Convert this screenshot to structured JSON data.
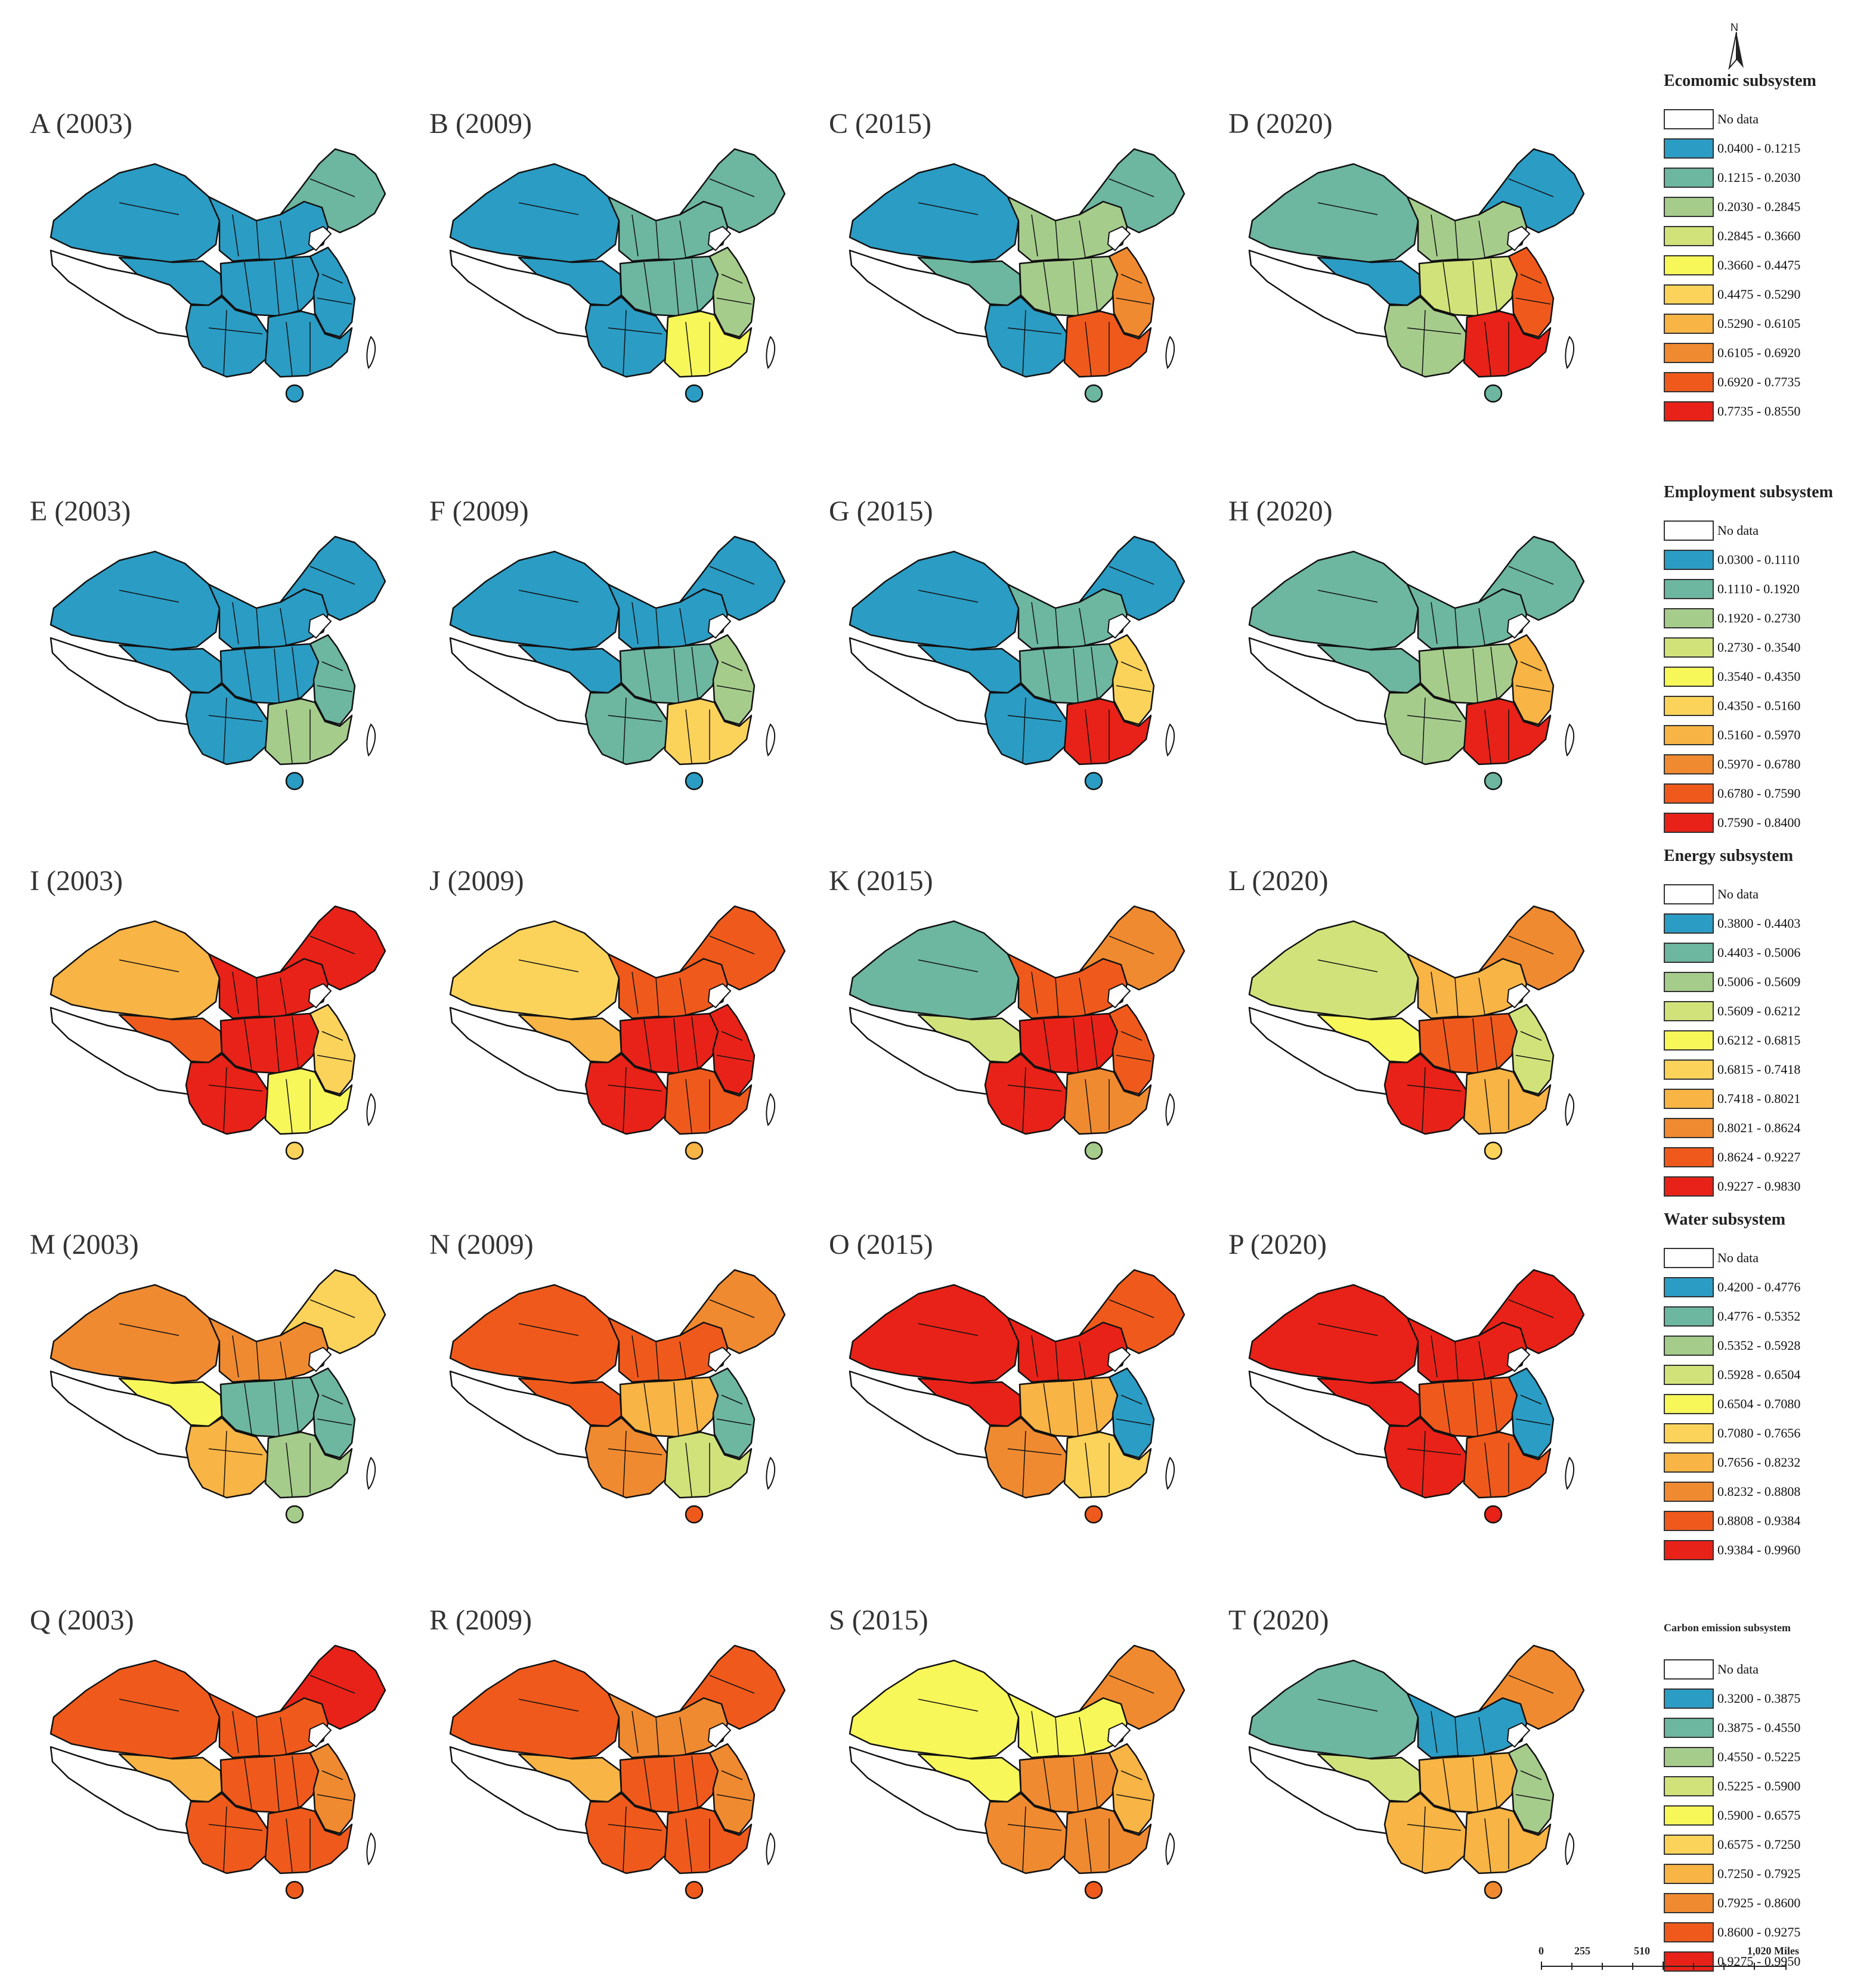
{
  "figure": {
    "north_label": "N",
    "scale": {
      "tick_0": "0",
      "tick_1": "255",
      "tick_2": "510",
      "tick_3": "1,020 Miles"
    }
  },
  "legends": [
    {
      "title": "Ecomomic subsystem",
      "items": [
        "No data",
        "0.0400 - 0.1215",
        "0.1215 - 0.2030",
        "0.2030 - 0.2845",
        "0.2845 - 0.3660",
        "0.3660 - 0.4475",
        "0.4475 - 0.5290",
        "0.5290 - 0.6105",
        "0.6105 - 0.6920",
        "0.6920 - 0.7735",
        "0.7735 - 0.8550"
      ]
    },
    {
      "title": "Employment subsystem",
      "items": [
        "No data",
        "0.0300 - 0.1110",
        "0.1110 - 0.1920",
        "0.1920 - 0.2730",
        "0.2730 - 0.3540",
        "0.3540 - 0.4350",
        "0.4350 - 0.5160",
        "0.5160 - 0.5970",
        "0.5970 - 0.6780",
        "0.6780 - 0.7590",
        "0.7590 - 0.8400"
      ]
    },
    {
      "title": "Energy subsystem",
      "items": [
        "No data",
        "0.3800 - 0.4403",
        "0.4403 - 0.5006",
        "0.5006 - 0.5609",
        "0.5609 - 0.6212",
        "0.6212 - 0.6815",
        "0.6815 - 0.7418",
        "0.7418 - 0.8021",
        "0.8021 - 0.8624",
        "0.8624 - 0.9227",
        "0.9227 - 0.9830"
      ]
    },
    {
      "title": "Water subsystem",
      "items": [
        "No data",
        "0.4200 - 0.4776",
        "0.4776 - 0.5352",
        "0.5352 - 0.5928",
        "0.5928 - 0.6504",
        "0.6504 - 0.7080",
        "0.7080 - 0.7656",
        "0.7656 - 0.8232",
        "0.8232 - 0.8808",
        "0.8808 - 0.9384",
        "0.9384 - 0.9960"
      ]
    },
    {
      "title": "Carbon emission subsystem",
      "items": [
        "No data",
        "0.3200 - 0.3875",
        "0.3875 - 0.4550",
        "0.4550 - 0.5225",
        "0.5225 - 0.5900",
        "0.5900 - 0.6575",
        "0.6575 - 0.7250",
        "0.7250 - 0.7925",
        "0.7925 - 0.8600",
        "0.8600 - 0.9275",
        "0.9275 - 0.9950"
      ]
    }
  ],
  "palette": [
    "#ffffff",
    "#2b9cc4",
    "#6db6a0",
    "#a6cc8c",
    "#d2e27a",
    "#f7f75a",
    "#fcd35a",
    "#f8b444",
    "#f08a30",
    "#ef5a1c",
    "#e82218"
  ],
  "panels": [
    {
      "label": "A (2003)",
      "class_levels": {
        "nw": 1,
        "tibet": 0,
        "qinghai": 1,
        "north": 1,
        "ne": 2,
        "central": 1,
        "east": 1,
        "south": 1,
        "sw": 1,
        "hainan": 1
      }
    },
    {
      "label": "B (2009)",
      "class_levels": {
        "nw": 1,
        "tibet": 0,
        "qinghai": 1,
        "north": 2,
        "ne": 2,
        "central": 2,
        "east": 3,
        "south": 5,
        "sw": 1,
        "hainan": 1
      }
    },
    {
      "label": "C (2015)",
      "class_levels": {
        "nw": 1,
        "tibet": 0,
        "qinghai": 2,
        "north": 3,
        "ne": 2,
        "central": 3,
        "east": 8,
        "south": 9,
        "sw": 1,
        "hainan": 2
      }
    },
    {
      "label": "D (2020)",
      "class_levels": {
        "nw": 2,
        "tibet": 0,
        "qinghai": 1,
        "north": 3,
        "ne": 1,
        "central": 4,
        "east": 9,
        "south": 10,
        "sw": 3,
        "hainan": 2
      }
    },
    {
      "label": "E (2003)",
      "class_levels": {
        "nw": 1,
        "tibet": 0,
        "qinghai": 1,
        "north": 1,
        "ne": 1,
        "central": 1,
        "east": 2,
        "south": 3,
        "sw": 1,
        "hainan": 1
      }
    },
    {
      "label": "F (2009)",
      "class_levels": {
        "nw": 1,
        "tibet": 0,
        "qinghai": 1,
        "north": 1,
        "ne": 1,
        "central": 2,
        "east": 3,
        "south": 6,
        "sw": 2,
        "hainan": 1
      }
    },
    {
      "label": "G (2015)",
      "class_levels": {
        "nw": 1,
        "tibet": 0,
        "qinghai": 1,
        "north": 2,
        "ne": 1,
        "central": 2,
        "east": 6,
        "south": 10,
        "sw": 1,
        "hainan": 1
      }
    },
    {
      "label": "H (2020)",
      "class_levels": {
        "nw": 2,
        "tibet": 0,
        "qinghai": 2,
        "north": 2,
        "ne": 2,
        "central": 3,
        "east": 7,
        "south": 10,
        "sw": 3,
        "hainan": 2
      }
    },
    {
      "label": "I (2003)",
      "class_levels": {
        "nw": 7,
        "tibet": 0,
        "qinghai": 9,
        "north": 10,
        "ne": 10,
        "central": 10,
        "east": 6,
        "south": 5,
        "sw": 10,
        "hainan": 6
      }
    },
    {
      "label": "J (2009)",
      "class_levels": {
        "nw": 6,
        "tibet": 0,
        "qinghai": 7,
        "north": 9,
        "ne": 9,
        "central": 10,
        "east": 10,
        "south": 9,
        "sw": 10,
        "hainan": 7
      }
    },
    {
      "label": "K (2015)",
      "class_levels": {
        "nw": 2,
        "tibet": 0,
        "qinghai": 4,
        "north": 9,
        "ne": 8,
        "central": 10,
        "east": 9,
        "south": 8,
        "sw": 10,
        "hainan": 3
      }
    },
    {
      "label": "L (2020)",
      "class_levels": {
        "nw": 4,
        "tibet": 0,
        "qinghai": 5,
        "north": 7,
        "ne": 8,
        "central": 9,
        "east": 4,
        "south": 7,
        "sw": 10,
        "hainan": 6
      }
    },
    {
      "label": "M (2003)",
      "class_levels": {
        "nw": 8,
        "tibet": 0,
        "qinghai": 5,
        "north": 8,
        "ne": 6,
        "central": 2,
        "east": 2,
        "south": 3,
        "sw": 7,
        "hainan": 3
      }
    },
    {
      "label": "N (2009)",
      "class_levels": {
        "nw": 9,
        "tibet": 0,
        "qinghai": 9,
        "north": 9,
        "ne": 8,
        "central": 7,
        "east": 2,
        "south": 4,
        "sw": 8,
        "hainan": 9
      }
    },
    {
      "label": "O (2015)",
      "class_levels": {
        "nw": 10,
        "tibet": 0,
        "qinghai": 10,
        "north": 10,
        "ne": 9,
        "central": 7,
        "east": 1,
        "south": 6,
        "sw": 8,
        "hainan": 9
      }
    },
    {
      "label": "P (2020)",
      "class_levels": {
        "nw": 10,
        "tibet": 0,
        "qinghai": 10,
        "north": 10,
        "ne": 10,
        "central": 9,
        "east": 1,
        "south": 9,
        "sw": 10,
        "hainan": 10
      }
    },
    {
      "label": "Q (2003)",
      "class_levels": {
        "nw": 9,
        "tibet": 0,
        "qinghai": 7,
        "north": 9,
        "ne": 10,
        "central": 9,
        "east": 8,
        "south": 9,
        "sw": 9,
        "hainan": 9
      }
    },
    {
      "label": "R (2009)",
      "class_levels": {
        "nw": 9,
        "tibet": 0,
        "qinghai": 7,
        "north": 8,
        "ne": 9,
        "central": 9,
        "east": 8,
        "south": 9,
        "sw": 9,
        "hainan": 9
      }
    },
    {
      "label": "S (2015)",
      "class_levels": {
        "nw": 5,
        "tibet": 0,
        "qinghai": 5,
        "north": 5,
        "ne": 8,
        "central": 8,
        "east": 7,
        "south": 8,
        "sw": 8,
        "hainan": 9
      }
    },
    {
      "label": "T (2020)",
      "class_levels": {
        "nw": 2,
        "tibet": 0,
        "qinghai": 4,
        "north": 1,
        "ne": 8,
        "central": 7,
        "east": 3,
        "south": 7,
        "sw": 7,
        "hainan": 8
      }
    }
  ]
}
